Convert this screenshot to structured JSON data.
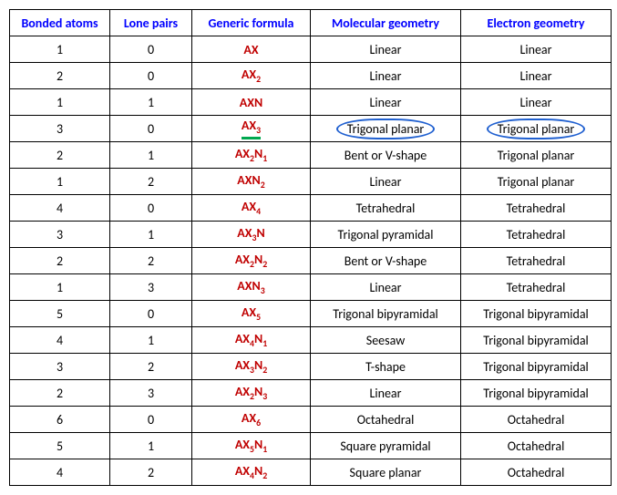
{
  "headers": {
    "bonded": "Bonded atoms",
    "lone": "Lone pairs",
    "formula": "Generic formula",
    "molgeo": "Molecular geometry",
    "elecgeo": "Electron geometry"
  },
  "rows": [
    {
      "bonded": "1",
      "lone": "0",
      "formula": "AX",
      "mol": "Linear",
      "elec": "Linear"
    },
    {
      "bonded": "2",
      "lone": "0",
      "formula": "AX",
      "sub1": "2",
      "mol": "Linear",
      "elec": "Linear"
    },
    {
      "bonded": "1",
      "lone": "1",
      "formula": "AXN",
      "mol": "Linear",
      "elec": "Linear"
    },
    {
      "bonded": "3",
      "lone": "0",
      "formula": "AX",
      "sub1": "3",
      "mol": "Trigonal planar",
      "elec": "Trigonal planar",
      "highlight": true
    },
    {
      "bonded": "2",
      "lone": "1",
      "formula": "AX",
      "sub1": "2",
      "mid": "N",
      "sub2": "1",
      "mol": "Bent or V-shape",
      "elec": "Trigonal planar"
    },
    {
      "bonded": "1",
      "lone": "2",
      "formula": "AXN",
      "sub1": "2",
      "mol": "Linear",
      "elec": "Trigonal planar"
    },
    {
      "bonded": "4",
      "lone": "0",
      "formula": "AX",
      "sub1": "4",
      "mol": "Tetrahedral",
      "elec": "Tetrahedral"
    },
    {
      "bonded": "3",
      "lone": "1",
      "formula": "AX",
      "sub1": "3",
      "mid": "N",
      "mol": "Trigonal pyramidal",
      "elec": "Tetrahedral"
    },
    {
      "bonded": "2",
      "lone": "2",
      "formula": "AX",
      "sub1": "2",
      "mid": "N",
      "sub2": "2",
      "mol": "Bent or V-shape",
      "elec": "Tetrahedral"
    },
    {
      "bonded": "1",
      "lone": "3",
      "formula": "AXN",
      "sub1": "3",
      "mol": "Linear",
      "elec": "Tetrahedral"
    },
    {
      "bonded": "5",
      "lone": "0",
      "formula": "AX",
      "sub1": "5",
      "mol": "Trigonal bipyramidal",
      "elec": "Trigonal bipyramidal"
    },
    {
      "bonded": "4",
      "lone": "1",
      "formula": "AX",
      "sub1": "4",
      "mid": "N",
      "sub2": "1",
      "mol": "Seesaw",
      "elec": "Trigonal bipyramidal"
    },
    {
      "bonded": "3",
      "lone": "2",
      "formula": "AX",
      "sub1": "3",
      "mid": "N",
      "sub2": "2",
      "mol": "T-shape",
      "elec": "Trigonal bipyramidal"
    },
    {
      "bonded": "2",
      "lone": "3",
      "formula": "AX",
      "sub1": "2",
      "mid": "N",
      "sub2": "3",
      "mol": "Linear",
      "elec": "Trigonal bipyramidal"
    },
    {
      "bonded": "6",
      "lone": "0",
      "formula": "AX",
      "sub1": "6",
      "mol": "Octahedral",
      "elec": "Octahedral"
    },
    {
      "bonded": "5",
      "lone": "1",
      "formula": "AX",
      "sub1": "5",
      "mid": "N",
      "sub2": "1",
      "mol": "Square pyramidal",
      "elec": "Octahedral"
    },
    {
      "bonded": "4",
      "lone": "2",
      "formula": "AX",
      "sub1": "4",
      "mid": "N",
      "sub2": "2",
      "mol": "Square planar",
      "elec": "Octahedral"
    }
  ]
}
